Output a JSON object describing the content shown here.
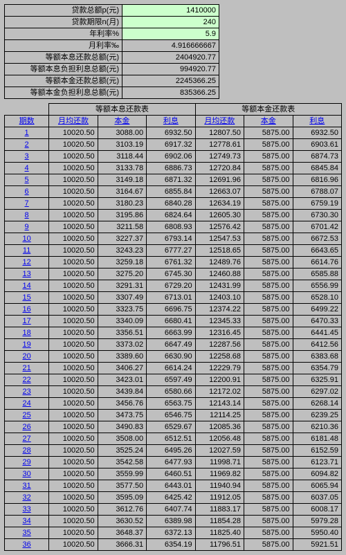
{
  "params": {
    "rows": [
      {
        "label": "贷款总额p(元)",
        "value": "1410000",
        "input": true
      },
      {
        "label": "贷款期限n(月)",
        "value": "240",
        "input": true
      },
      {
        "label": "年利率%",
        "value": "5.9",
        "input": true
      },
      {
        "label": "月利率‰",
        "value": "4.916666667",
        "input": false
      },
      {
        "label": "等额本息还款总额(元)",
        "value": "2404920.77",
        "input": false
      },
      {
        "label": "等额本息负担利息总额(元)",
        "value": "994920.77",
        "input": false
      },
      {
        "label": "等额本金还款总额(元)",
        "value": "2245366.25",
        "input": false
      },
      {
        "label": "等额本金负担利息总额(元)",
        "value": "835366.25",
        "input": false
      }
    ]
  },
  "repay": {
    "group1_title": "等额本息还款表",
    "group2_title": "等额本金还款表",
    "period_header": "期数",
    "col_headers": [
      "月均还款",
      "本金",
      "利息"
    ],
    "rows": [
      {
        "p": "1",
        "a": [
          "10020.50",
          "3088.00",
          "6932.50"
        ],
        "b": [
          "12807.50",
          "5875.00",
          "6932.50"
        ]
      },
      {
        "p": "2",
        "a": [
          "10020.50",
          "3103.19",
          "6917.32"
        ],
        "b": [
          "12778.61",
          "5875.00",
          "6903.61"
        ]
      },
      {
        "p": "3",
        "a": [
          "10020.50",
          "3118.44",
          "6902.06"
        ],
        "b": [
          "12749.73",
          "5875.00",
          "6874.73"
        ]
      },
      {
        "p": "4",
        "a": [
          "10020.50",
          "3133.78",
          "6886.73"
        ],
        "b": [
          "12720.84",
          "5875.00",
          "6845.84"
        ]
      },
      {
        "p": "5",
        "a": [
          "10020.50",
          "3149.18",
          "6871.32"
        ],
        "b": [
          "12691.96",
          "5875.00",
          "6816.96"
        ]
      },
      {
        "p": "6",
        "a": [
          "10020.50",
          "3164.67",
          "6855.84"
        ],
        "b": [
          "12663.07",
          "5875.00",
          "6788.07"
        ]
      },
      {
        "p": "7",
        "a": [
          "10020.50",
          "3180.23",
          "6840.28"
        ],
        "b": [
          "12634.19",
          "5875.00",
          "6759.19"
        ]
      },
      {
        "p": "8",
        "a": [
          "10020.50",
          "3195.86",
          "6824.64"
        ],
        "b": [
          "12605.30",
          "5875.00",
          "6730.30"
        ]
      },
      {
        "p": "9",
        "a": [
          "10020.50",
          "3211.58",
          "6808.93"
        ],
        "b": [
          "12576.42",
          "5875.00",
          "6701.42"
        ]
      },
      {
        "p": "10",
        "a": [
          "10020.50",
          "3227.37",
          "6793.14"
        ],
        "b": [
          "12547.53",
          "5875.00",
          "6672.53"
        ]
      },
      {
        "p": "11",
        "a": [
          "10020.50",
          "3243.23",
          "6777.27"
        ],
        "b": [
          "12518.65",
          "5875.00",
          "6643.65"
        ]
      },
      {
        "p": "12",
        "a": [
          "10020.50",
          "3259.18",
          "6761.32"
        ],
        "b": [
          "12489.76",
          "5875.00",
          "6614.76"
        ]
      },
      {
        "p": "13",
        "a": [
          "10020.50",
          "3275.20",
          "6745.30"
        ],
        "b": [
          "12460.88",
          "5875.00",
          "6585.88"
        ]
      },
      {
        "p": "14",
        "a": [
          "10020.50",
          "3291.31",
          "6729.20"
        ],
        "b": [
          "12431.99",
          "5875.00",
          "6556.99"
        ]
      },
      {
        "p": "15",
        "a": [
          "10020.50",
          "3307.49",
          "6713.01"
        ],
        "b": [
          "12403.10",
          "5875.00",
          "6528.10"
        ]
      },
      {
        "p": "16",
        "a": [
          "10020.50",
          "3323.75",
          "6696.75"
        ],
        "b": [
          "12374.22",
          "5875.00",
          "6499.22"
        ]
      },
      {
        "p": "17",
        "a": [
          "10020.50",
          "3340.09",
          "6680.41"
        ],
        "b": [
          "12345.33",
          "5875.00",
          "6470.33"
        ]
      },
      {
        "p": "18",
        "a": [
          "10020.50",
          "3356.51",
          "6663.99"
        ],
        "b": [
          "12316.45",
          "5875.00",
          "6441.45"
        ]
      },
      {
        "p": "19",
        "a": [
          "10020.50",
          "3373.02",
          "6647.49"
        ],
        "b": [
          "12287.56",
          "5875.00",
          "6412.56"
        ]
      },
      {
        "p": "20",
        "a": [
          "10020.50",
          "3389.60",
          "6630.90"
        ],
        "b": [
          "12258.68",
          "5875.00",
          "6383.68"
        ]
      },
      {
        "p": "21",
        "a": [
          "10020.50",
          "3406.27",
          "6614.24"
        ],
        "b": [
          "12229.79",
          "5875.00",
          "6354.79"
        ]
      },
      {
        "p": "22",
        "a": [
          "10020.50",
          "3423.01",
          "6597.49"
        ],
        "b": [
          "12200.91",
          "5875.00",
          "6325.91"
        ]
      },
      {
        "p": "23",
        "a": [
          "10020.50",
          "3439.84",
          "6580.66"
        ],
        "b": [
          "12172.02",
          "5875.00",
          "6297.02"
        ]
      },
      {
        "p": "24",
        "a": [
          "10020.50",
          "3456.76",
          "6563.75"
        ],
        "b": [
          "12143.14",
          "5875.00",
          "6268.14"
        ]
      },
      {
        "p": "25",
        "a": [
          "10020.50",
          "3473.75",
          "6546.75"
        ],
        "b": [
          "12114.25",
          "5875.00",
          "6239.25"
        ]
      },
      {
        "p": "26",
        "a": [
          "10020.50",
          "3490.83",
          "6529.67"
        ],
        "b": [
          "12085.36",
          "5875.00",
          "6210.36"
        ]
      },
      {
        "p": "27",
        "a": [
          "10020.50",
          "3508.00",
          "6512.51"
        ],
        "b": [
          "12056.48",
          "5875.00",
          "6181.48"
        ]
      },
      {
        "p": "28",
        "a": [
          "10020.50",
          "3525.24",
          "6495.26"
        ],
        "b": [
          "12027.59",
          "5875.00",
          "6152.59"
        ]
      },
      {
        "p": "29",
        "a": [
          "10020.50",
          "3542.58",
          "6477.93"
        ],
        "b": [
          "11998.71",
          "5875.00",
          "6123.71"
        ]
      },
      {
        "p": "30",
        "a": [
          "10020.50",
          "3559.99",
          "6460.51"
        ],
        "b": [
          "11969.82",
          "5875.00",
          "6094.82"
        ]
      },
      {
        "p": "31",
        "a": [
          "10020.50",
          "3577.50",
          "6443.01"
        ],
        "b": [
          "11940.94",
          "5875.00",
          "6065.94"
        ]
      },
      {
        "p": "32",
        "a": [
          "10020.50",
          "3595.09",
          "6425.42"
        ],
        "b": [
          "11912.05",
          "5875.00",
          "6037.05"
        ]
      },
      {
        "p": "33",
        "a": [
          "10020.50",
          "3612.76",
          "6407.74"
        ],
        "b": [
          "11883.17",
          "5875.00",
          "6008.17"
        ]
      },
      {
        "p": "34",
        "a": [
          "10020.50",
          "3630.52",
          "6389.98"
        ],
        "b": [
          "11854.28",
          "5875.00",
          "5979.28"
        ]
      },
      {
        "p": "35",
        "a": [
          "10020.50",
          "3648.37",
          "6372.13"
        ],
        "b": [
          "11825.40",
          "5875.00",
          "5950.40"
        ]
      },
      {
        "p": "36",
        "a": [
          "10020.50",
          "3666.31",
          "6354.19"
        ],
        "b": [
          "11796.51",
          "5875.00",
          "5921.51"
        ]
      }
    ]
  }
}
